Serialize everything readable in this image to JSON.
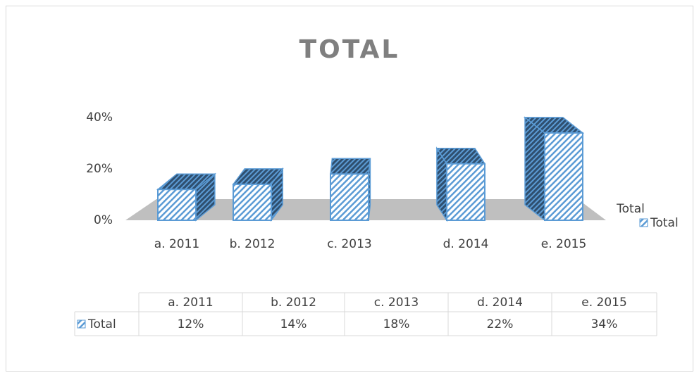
{
  "chart_data": {
    "type": "bar",
    "title": "TOTAL",
    "categories": [
      "a. 2011",
      "b. 2012",
      "c.  2013",
      "d. 2014",
      "e. 2015"
    ],
    "series": [
      {
        "name": "Total",
        "color": "#5b9bd5",
        "values": [
          12,
          14,
          18,
          22,
          34
        ],
        "value_labels": [
          "12%",
          "14%",
          "18%",
          "22%",
          "34%"
        ]
      }
    ],
    "ylim": [
      0,
      40
    ],
    "yticks": [
      {
        "value": 0,
        "label": "0%"
      },
      {
        "value": 20,
        "label": "20%"
      },
      {
        "value": 40,
        "label": "40%"
      }
    ],
    "legend": "right",
    "data_table": true
  }
}
